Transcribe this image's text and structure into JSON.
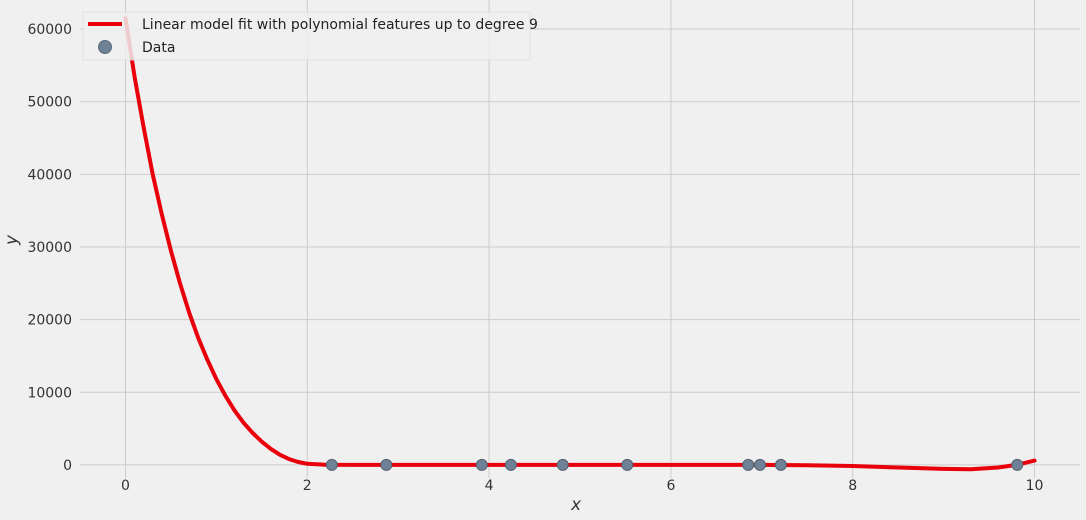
{
  "chart_data": {
    "type": "scatter",
    "xlabel": "x",
    "ylabel": "y",
    "xlim": [
      -0.5,
      10.5
    ],
    "ylim": [
      -1800,
      64000
    ],
    "x_ticks": [
      0,
      2,
      4,
      6,
      8,
      10
    ],
    "y_ticks": [
      0,
      10000,
      20000,
      30000,
      40000,
      50000,
      60000
    ],
    "grid": true,
    "legend_position": "top-left",
    "series": [
      {
        "name": "Linear model fit with polynomial features up to degree 9",
        "kind": "line",
        "color": "#e8000b",
        "points": [
          [
            0,
            61500
          ],
          [
            0.1,
            53500
          ],
          [
            0.2,
            46500
          ],
          [
            0.3,
            40000
          ],
          [
            0.4,
            34500
          ],
          [
            0.5,
            29500
          ],
          [
            0.6,
            25000
          ],
          [
            0.7,
            21000
          ],
          [
            0.8,
            17500
          ],
          [
            0.9,
            14500
          ],
          [
            1.0,
            11800
          ],
          [
            1.1,
            9500
          ],
          [
            1.2,
            7500
          ],
          [
            1.3,
            5800
          ],
          [
            1.4,
            4400
          ],
          [
            1.5,
            3200
          ],
          [
            1.6,
            2200
          ],
          [
            1.7,
            1400
          ],
          [
            1.8,
            800
          ],
          [
            1.9,
            400
          ],
          [
            2.0,
            150
          ],
          [
            2.2,
            20
          ],
          [
            2.5,
            0
          ],
          [
            3.0,
            0
          ],
          [
            4.0,
            0
          ],
          [
            5.0,
            0
          ],
          [
            6.0,
            0
          ],
          [
            7.0,
            0
          ],
          [
            7.5,
            -50
          ],
          [
            8.0,
            -150
          ],
          [
            8.5,
            -350
          ],
          [
            9.0,
            -550
          ],
          [
            9.3,
            -600
          ],
          [
            9.6,
            -350
          ],
          [
            9.8,
            0
          ],
          [
            10.0,
            600
          ]
        ]
      },
      {
        "name": "Data",
        "kind": "scatter",
        "color": "#6e8196",
        "x": [
          2.27,
          2.87,
          3.92,
          4.24,
          4.81,
          5.52,
          6.85,
          6.98,
          7.21,
          9.81
        ],
        "y": [
          0,
          0,
          0,
          0,
          0,
          0,
          0,
          0,
          0,
          0
        ]
      }
    ]
  },
  "legend": {
    "line_label": "Linear model fit with polynomial features up to degree 9",
    "data_label": "Data"
  }
}
